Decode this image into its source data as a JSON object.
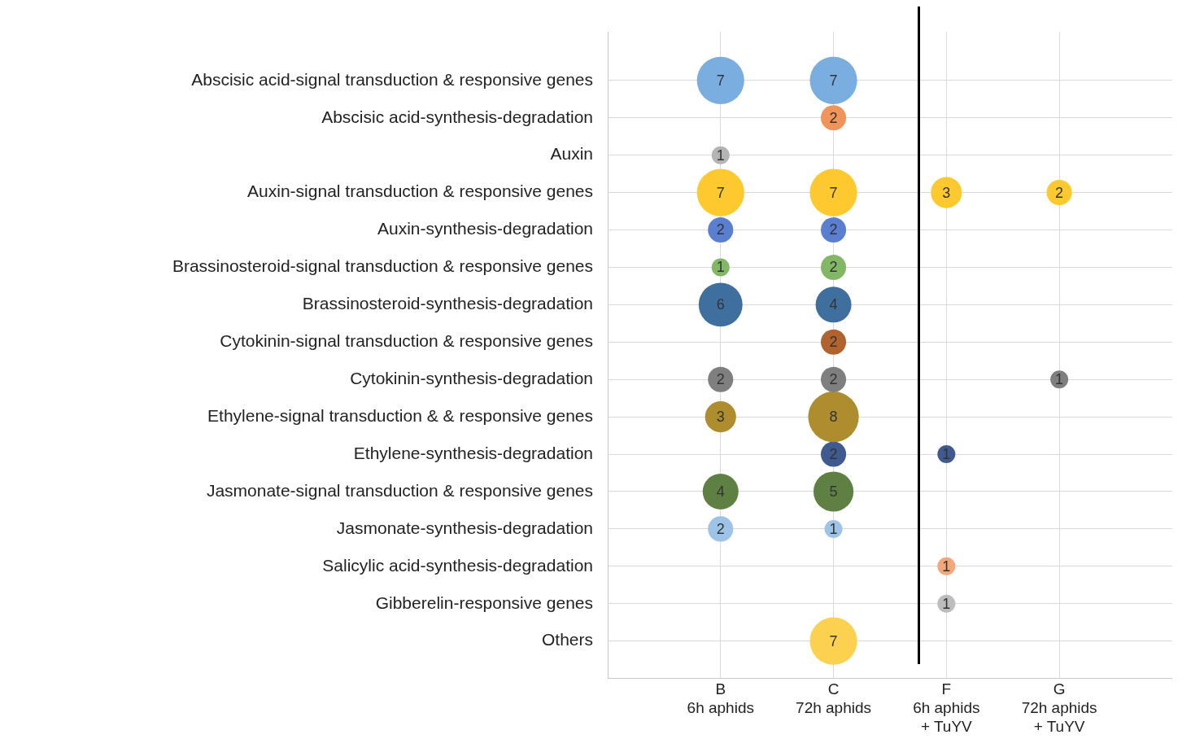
{
  "chart_data": {
    "type": "heatmap",
    "categories": [
      "B\n6h aphids",
      "C\n72h aphids",
      "F\n6h aphids\n+ TuYV",
      "G\n72h aphids\n+ TuYV"
    ],
    "y_categories": [
      "Abscisic acid-signal transduction & responsive genes",
      "Abscisic acid-synthesis-degradation",
      "Auxin",
      "Auxin-signal transduction & responsive genes",
      "Auxin-synthesis-degradation",
      "Brassinosteroid-signal transduction & responsive genes",
      "Brassinosteroid-synthesis-degradation",
      "Cytokinin-signal transduction & responsive genes",
      "Cytokinin-synthesis-degradation",
      "Ethylene-signal transduction & & responsive genes",
      "Ethylene-synthesis-degradation",
      "Jasmonate-signal transduction & responsive genes",
      "Jasmonate-synthesis-degradation",
      "Salicylic acid-synthesis-degradation",
      "Gibberelin-responsive genes",
      "Others"
    ],
    "cells": [
      [
        7,
        7,
        null,
        null
      ],
      [
        null,
        2,
        null,
        null
      ],
      [
        1,
        null,
        null,
        null
      ],
      [
        7,
        7,
        3,
        2
      ],
      [
        2,
        2,
        null,
        null
      ],
      [
        1,
        2,
        null,
        null
      ],
      [
        6,
        4,
        null,
        null
      ],
      [
        null,
        2,
        null,
        null
      ],
      [
        2,
        2,
        null,
        1
      ],
      [
        3,
        8,
        null,
        null
      ],
      [
        null,
        2,
        1,
        null
      ],
      [
        4,
        5,
        null,
        null
      ],
      [
        2,
        1,
        null,
        null
      ],
      [
        null,
        null,
        1,
        null
      ],
      [
        null,
        null,
        1,
        null
      ],
      [
        null,
        7,
        null,
        null
      ]
    ],
    "colors": [
      "#7aaee0",
      "#f0945a",
      "#b4b4b4",
      "#fdc92f",
      "#5b7fd0",
      "#82b865",
      "#3e6f9e",
      "#b0622f",
      "#7f7f7f",
      "#ad8d2e",
      "#3f5a8e",
      "#5f8043",
      "#9dc3e6",
      "#f4a77a",
      "#bdbdbd",
      "#fdd150"
    ],
    "data_labels": true,
    "grid": true
  }
}
